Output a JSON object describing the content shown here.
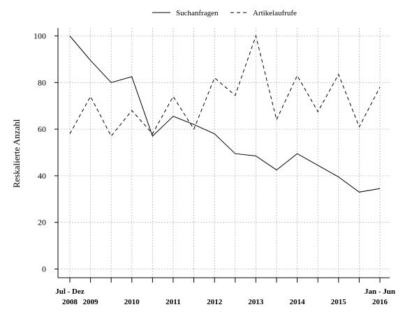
{
  "chart_data": {
    "type": "line",
    "ylabel": "Reskalierte Anzahl",
    "xlabel": "",
    "ylim": [
      0,
      100
    ],
    "y_ticks": [
      0,
      20,
      40,
      60,
      80,
      100
    ],
    "grid": true,
    "legend_position": "top",
    "x_period_count": 16,
    "x_tick_labels": [
      {
        "period": 1,
        "top": "Jul - Dez",
        "bottom": "2008"
      },
      {
        "period": 2,
        "top": "",
        "bottom": "2009"
      },
      {
        "period": 4,
        "top": "",
        "bottom": "2010"
      },
      {
        "period": 6,
        "top": "",
        "bottom": "2011"
      },
      {
        "period": 8,
        "top": "",
        "bottom": "2012"
      },
      {
        "period": 10,
        "top": "",
        "bottom": "2013"
      },
      {
        "period": 12,
        "top": "",
        "bottom": "2014"
      },
      {
        "period": 14,
        "top": "",
        "bottom": "2015"
      },
      {
        "period": 16,
        "top": "Jan - Jun",
        "bottom": "2016"
      }
    ],
    "series": [
      {
        "name": "Suchanfragen",
        "style": "solid",
        "values": [
          100,
          89.5,
          80,
          82.5,
          57,
          65.5,
          62,
          58,
          49.5,
          48.5,
          42.5,
          49.5,
          44.5,
          39.5,
          33,
          34.5
        ]
      },
      {
        "name": "Artikelaufrufe",
        "style": "dashed",
        "values": [
          58,
          74,
          57,
          68,
          58,
          74,
          60,
          82,
          74.5,
          100,
          64,
          83,
          67.5,
          83.5,
          61,
          78
        ]
      }
    ]
  }
}
